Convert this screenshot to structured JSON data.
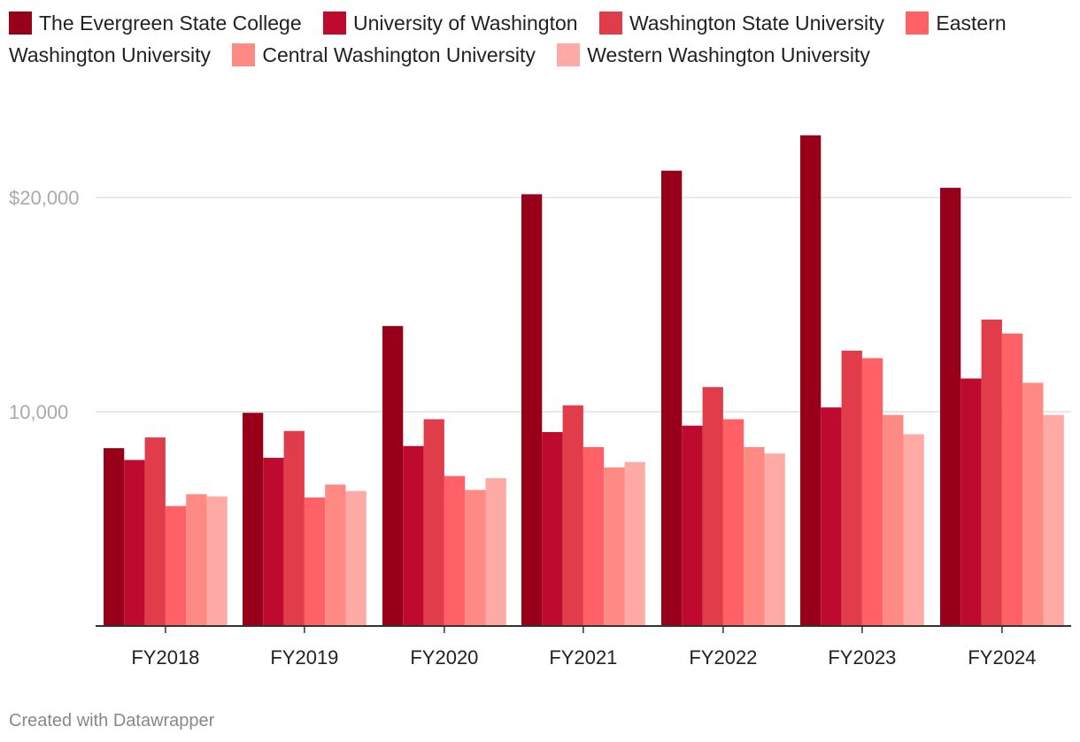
{
  "chart_data": {
    "type": "bar",
    "title": "",
    "xlabel": "",
    "ylabel": "",
    "categories": [
      "FY2018",
      "FY2019",
      "FY2020",
      "FY2021",
      "FY2022",
      "FY2023",
      "FY2024"
    ],
    "ylim": [
      0,
      23000
    ],
    "yticks": [
      {
        "value": 10000,
        "label": "10,000"
      },
      {
        "value": 20000,
        "label": "$20,000"
      }
    ],
    "grid": true,
    "legend_position": "top",
    "series": [
      {
        "name": "The Evergreen State College",
        "color": "#98001a",
        "values": [
          8300,
          9950,
          14000,
          20150,
          21250,
          22900,
          20450
        ]
      },
      {
        "name": "University of Washington",
        "color": "#bf0a30",
        "values": [
          7750,
          7850,
          8400,
          9050,
          9350,
          10200,
          11550
        ]
      },
      {
        "name": "Washington State University",
        "color": "#e03c4a",
        "values": [
          8800,
          9100,
          9650,
          10300,
          11150,
          12850,
          14300
        ]
      },
      {
        "name": "Eastern Washington University",
        "color": "#ff6166",
        "values": [
          5600,
          6000,
          7000,
          8350,
          9650,
          12500,
          13650
        ]
      },
      {
        "name": "Central Washington University",
        "color": "#ff8a84",
        "values": [
          6150,
          6600,
          6350,
          7400,
          8350,
          9850,
          11350
        ]
      },
      {
        "name": "Western Washington University",
        "color": "#ffaaa4",
        "values": [
          6050,
          6300,
          6900,
          7650,
          8050,
          8950,
          9850
        ]
      }
    ]
  },
  "footer": {
    "credit": "Created with Datawrapper"
  }
}
